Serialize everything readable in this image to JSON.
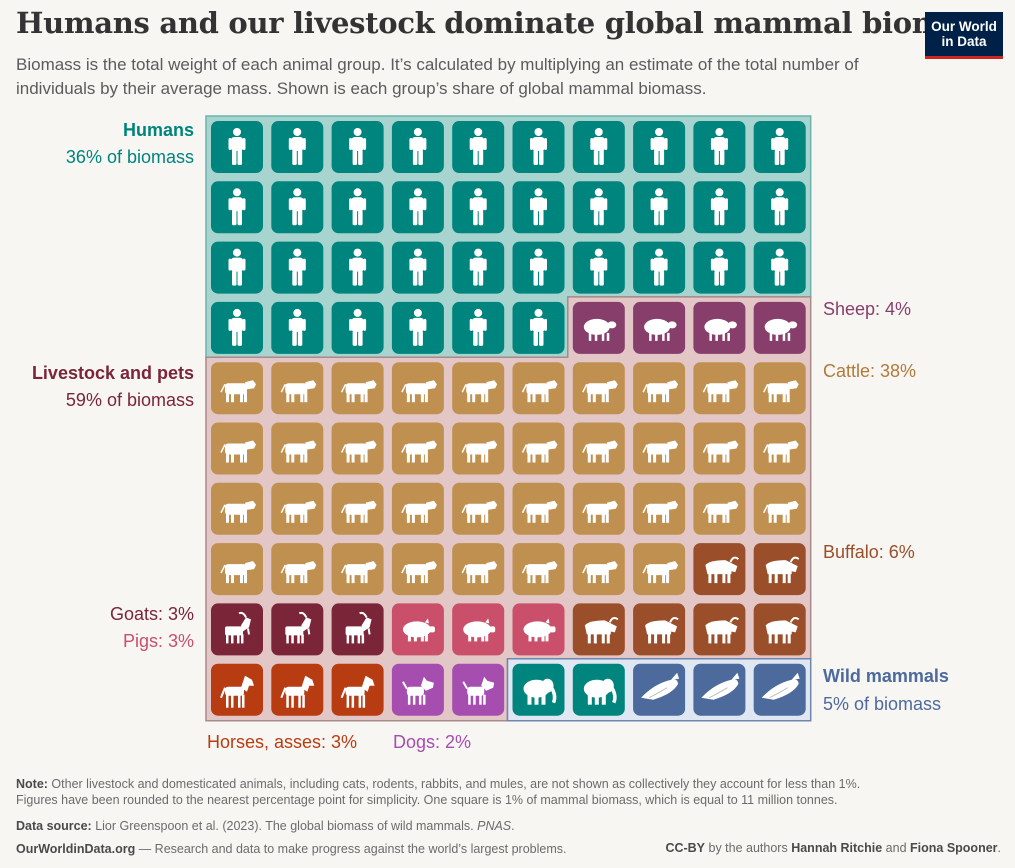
{
  "header": {
    "title": "Humans and our livestock dominate global mammal biomass",
    "subtitle": "Biomass is the total weight of each animal group. It’s calculated by multiplying an estimate of the total number of individuals by their average mass. Shown is each group’s share of global mammal biomass.",
    "logo_line1": "Our World",
    "logo_line2": "in Data"
  },
  "labels": {
    "humans_name": "Humans",
    "humans_share": "36% of biomass",
    "livestock_name": "Livestock and pets",
    "livestock_share": "59% of biomass",
    "wild_name": "Wild mammals",
    "wild_share": "5% of biomass",
    "sheep": "Sheep: 4%",
    "cattle": "Cattle: 38%",
    "buffalo": "Buffalo: 6%",
    "goats": "Goats: 3%",
    "pigs": "Pigs: 3%",
    "horses": "Horses, asses: 3%",
    "dogs": "Dogs: 2%"
  },
  "colors": {
    "human": "#00847e",
    "sheep": "#883e6b",
    "cattle": "#c09050",
    "buffalo": "#9a4f2a",
    "goat": "#7a2538",
    "pig": "#c94f6a",
    "horse": "#b83c12",
    "dog": "#a64db0",
    "wild_elephant": "#00847e",
    "whale": "#4c6a9c",
    "humans_group_bg": "#a8d4cf",
    "livestock_group_bg": "#e3c6c6",
    "wild_group_bg": "#dfe7f2"
  },
  "chart_data": {
    "type": "waffle",
    "unit": "One square is 1% of mammal biomass, which is equal to 11 million tonnes.",
    "grid": {
      "rows": 10,
      "cols": 10
    },
    "groups": [
      {
        "name": "Humans",
        "share_percent": 36,
        "categories": [
          "Humans"
        ]
      },
      {
        "name": "Livestock and pets",
        "share_percent": 59,
        "categories": [
          "Sheep",
          "Cattle",
          "Buffalo",
          "Goats",
          "Pigs",
          "Horses, asses",
          "Dogs"
        ]
      },
      {
        "name": "Wild mammals",
        "share_percent": 5,
        "categories": [
          "Wild land mammals",
          "Wild marine mammals"
        ]
      }
    ],
    "categories": [
      {
        "name": "Humans",
        "value": 36,
        "icon": "person-icon",
        "color_key": "human"
      },
      {
        "name": "Sheep",
        "value": 4,
        "icon": "sheep-icon",
        "color_key": "sheep"
      },
      {
        "name": "Cattle",
        "value": 38,
        "icon": "cow-icon",
        "color_key": "cattle"
      },
      {
        "name": "Buffalo",
        "value": 6,
        "icon": "buffalo-icon",
        "color_key": "buffalo"
      },
      {
        "name": "Goats",
        "value": 3,
        "icon": "goat-icon",
        "color_key": "goat"
      },
      {
        "name": "Pigs",
        "value": 3,
        "icon": "pig-icon",
        "color_key": "pig"
      },
      {
        "name": "Horses, asses",
        "value": 3,
        "icon": "horse-icon",
        "color_key": "horse"
      },
      {
        "name": "Dogs",
        "value": 2,
        "icon": "dog-icon",
        "color_key": "dog"
      },
      {
        "name": "Wild land mammals",
        "value": 2,
        "icon": "elephant-icon",
        "color_key": "wild_elephant"
      },
      {
        "name": "Wild marine mammals",
        "value": 3,
        "icon": "whale-icon",
        "color_key": "whale"
      }
    ]
  },
  "footer": {
    "note_label": "Note:",
    "note_text": " Other livestock and domesticated animals, including cats, rodents, rabbits, and mules, are not shown as collectively they account for less than 1%.",
    "note_line2": "Figures have been rounded to the nearest percentage point for simplicity. One square is 1% of mammal biomass, which is equal to 11 million tonnes.",
    "source_label": "Data source:",
    "source_text": " Lior Greenspoon et al. (2023). The global biomass of wild mammals. ",
    "source_journal": "PNAS",
    "source_end": ".",
    "site": "OurWorldinData.org",
    "site_text": " — Research and data to make progress against the world’s largest problems.",
    "license": "CC-BY",
    "license_text": " by the authors ",
    "author1": "Hannah Ritchie",
    "and": " and ",
    "author2": "Fiona Spooner",
    "end": "."
  }
}
